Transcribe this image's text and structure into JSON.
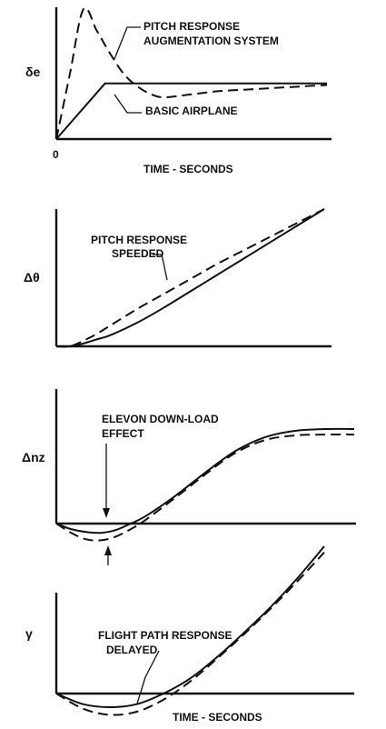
{
  "chart_data": [
    {
      "type": "line",
      "ylabel": "δe",
      "xlabel": "TIME - SECONDS",
      "x_tick_labels": [
        "0"
      ],
      "series": [
        {
          "style": "dashed",
          "x": [
            0,
            0.05,
            0.1,
            0.15,
            0.2,
            0.25,
            0.3,
            0.35,
            0.4,
            0.5,
            0.6,
            0.7,
            0.8,
            0.9,
            1.0
          ],
          "y": [
            0,
            0.42,
            0.84,
            0.7,
            0.55,
            0.42,
            0.34,
            0.29,
            0.27,
            0.29,
            0.31,
            0.32,
            0.33,
            0.34,
            0.35
          ]
        },
        {
          "style": "solid",
          "x": [
            0,
            0.18,
            1.0
          ],
          "y": [
            0,
            0.36,
            0.36
          ]
        }
      ],
      "annotations": [
        "PITCH RESPONSE",
        "AUGMENTATION SYSTEM",
        "BASIC AIRPLANE"
      ]
    },
    {
      "type": "line",
      "ylabel": "Δθ",
      "series": [
        {
          "style": "solid",
          "x": [
            0,
            0.05,
            0.1,
            0.15,
            0.2,
            0.3,
            0.4,
            0.5,
            0.6,
            0.7,
            0.8,
            0.9,
            1.0
          ],
          "y": [
            0,
            0.0,
            0.02,
            0.05,
            0.08,
            0.17,
            0.28,
            0.4,
            0.52,
            0.64,
            0.76,
            0.88,
            1.0
          ]
        },
        {
          "style": "dashed",
          "x": [
            0,
            0.05,
            0.1,
            0.15,
            0.2,
            0.3,
            0.4,
            0.5,
            0.6,
            0.7,
            0.8,
            0.9,
            1.0
          ],
          "y": [
            0,
            0.0,
            0.04,
            0.09,
            0.15,
            0.27,
            0.38,
            0.49,
            0.6,
            0.7,
            0.8,
            0.9,
            1.0
          ]
        }
      ],
      "annotations": [
        "PITCH RESPONSE",
        "SPEEDED"
      ]
    },
    {
      "type": "line",
      "ylabel": "Δnz",
      "series": [
        {
          "style": "solid",
          "x": [
            0,
            0.05,
            0.1,
            0.15,
            0.2,
            0.25,
            0.3,
            0.4,
            0.5,
            0.6,
            0.7,
            0.8,
            0.9,
            1.0
          ],
          "y": [
            0,
            -0.06,
            -0.09,
            -0.1,
            -0.07,
            0.0,
            0.08,
            0.3,
            0.55,
            0.78,
            0.93,
            1.0,
            1.02,
            1.02
          ]
        },
        {
          "style": "dashed",
          "x": [
            0,
            0.05,
            0.1,
            0.15,
            0.2,
            0.25,
            0.3,
            0.4,
            0.5,
            0.6,
            0.7,
            0.8,
            0.9,
            1.0
          ],
          "y": [
            0,
            -0.1,
            -0.17,
            -0.18,
            -0.14,
            -0.06,
            0.04,
            0.28,
            0.53,
            0.76,
            0.9,
            0.95,
            0.96,
            0.96
          ]
        }
      ],
      "annotations": [
        "ELEVON DOWN-LOAD",
        "EFFECT"
      ]
    },
    {
      "type": "line",
      "ylabel": "γ",
      "xlabel": "TIME - SECONDS",
      "series": [
        {
          "style": "solid",
          "x": [
            0,
            0.1,
            0.2,
            0.3,
            0.4,
            0.5,
            0.6,
            0.7,
            0.8,
            0.9,
            1.0
          ],
          "y": [
            0,
            -0.07,
            -0.09,
            -0.07,
            0.0,
            0.1,
            0.24,
            0.4,
            0.57,
            0.76,
            0.97
          ]
        },
        {
          "style": "dashed",
          "x": [
            0,
            0.1,
            0.2,
            0.3,
            0.4,
            0.5,
            0.6,
            0.7,
            0.8,
            0.9,
            1.0
          ],
          "y": [
            0,
            -0.1,
            -0.14,
            -0.12,
            -0.04,
            0.08,
            0.23,
            0.39,
            0.56,
            0.74,
            0.93
          ]
        }
      ],
      "annotations": [
        "FLIGHT PATH RESPONSE",
        "DELAYED"
      ]
    }
  ]
}
